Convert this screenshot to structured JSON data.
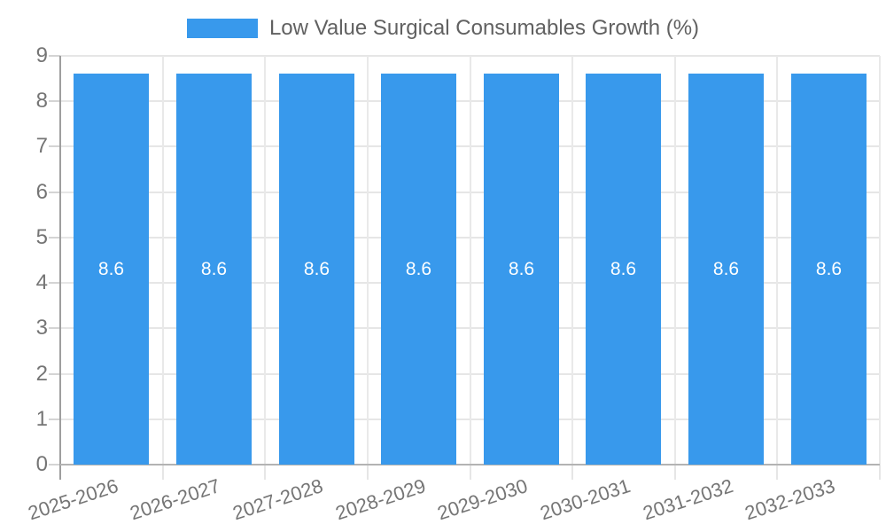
{
  "chart_data": {
    "type": "bar",
    "title": "Low Value Surgical Consumables Growth (%)",
    "categories": [
      "2025-2026",
      "2026-2027",
      "2027-2028",
      "2028-2029",
      "2029-2030",
      "2030-2031",
      "2031-2032",
      "2032-2033"
    ],
    "values": [
      8.6,
      8.6,
      8.6,
      8.6,
      8.6,
      8.6,
      8.6,
      8.6
    ],
    "value_labels": [
      "8.6",
      "8.6",
      "8.6",
      "8.6",
      "8.6",
      "8.6",
      "8.6",
      "8.6"
    ],
    "series": [
      {
        "name": "Low Value Surgical Consumables Growth (%)",
        "values": [
          8.6,
          8.6,
          8.6,
          8.6,
          8.6,
          8.6,
          8.6,
          8.6
        ]
      }
    ],
    "xlabel": "",
    "ylabel": "",
    "ylim": [
      0,
      9
    ],
    "y_ticks": [
      0,
      1,
      2,
      3,
      4,
      5,
      6,
      7,
      8,
      9
    ],
    "grid": true,
    "legend_position": "top-center",
    "colors": {
      "bar": "#3899EC",
      "value_label": "#FFFFFF",
      "axis_label": "#757575",
      "title": "#616161",
      "gridline": "#E6E6E6",
      "axis_line": "#9E9E9E",
      "background": "#FFFFFF"
    }
  }
}
